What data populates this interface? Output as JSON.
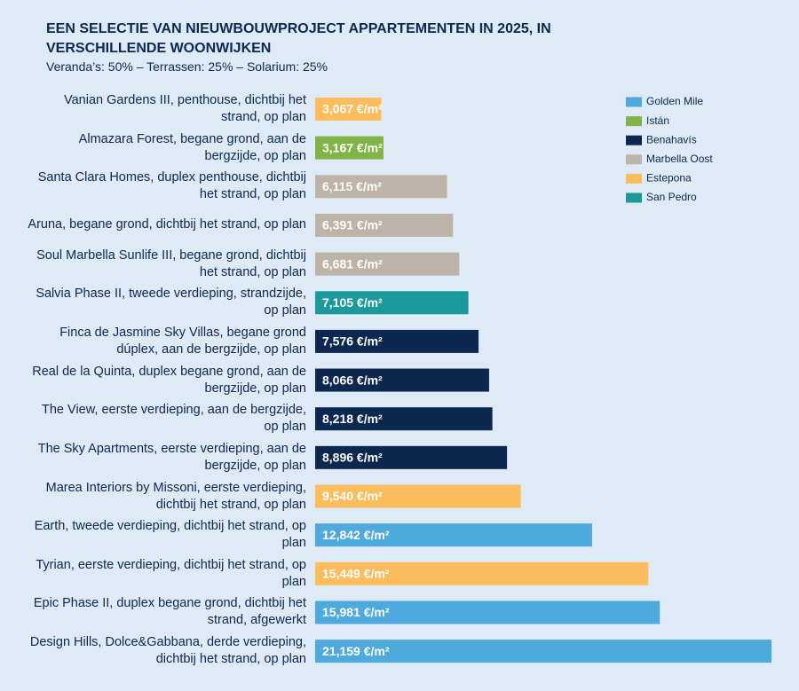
{
  "chart_data": {
    "type": "bar",
    "orientation": "horizontal",
    "title": "EEN SELECTIE VAN NIEUWBOUWPROJECT APPARTEMENTEN IN 2025, IN VERSCHILLENDE WOONWIJKEN",
    "subtitle": "Veranda’s: 50% – Terrassen: 25% – Solarium: 25%",
    "categories": [
      "Vanian Gardens III, penthouse, dichtbij het strand, op plan",
      "Almazara Forest, begane grond, aan de bergzijde, op plan",
      "Santa Clara Homes, duplex penthouse, dichtbij het strand, op plan",
      "Aruna, begane grond, dichtbij het strand, op plan",
      "Soul Marbella Sunlife III, begane grond, dichtbij het strand, op plan",
      "Salvia Phase II, tweede verdieping, strandzijde, op plan",
      "Finca de Jasmine Sky Villas, begane grond dúplex, aan de bergzijde, op plan",
      "Real de la Quinta, duplex begane grond, aan de bergzijde, op plan",
      "The View, eerste verdieping, aan de bergzijde, op plan",
      "The Sky Apartments, eerste verdieping, aan de bergzijde, op plan",
      "Marea Interiors by Missoni, eerste verdieping, dichtbij het strand, op plan",
      "Earth, tweede verdieping, dichtbij het strand, op plan",
      "Tyrian, eerste verdieping, dichtbij het strand, op plan",
      "Epic Phase II, duplex begane grond, dichtbij het strand, afgewerkt",
      "Design Hills, Dolce&Gabbana, derde verdieping, dichtbij het strand, op plan"
    ],
    "series": [
      {
        "name": "Golden Mile",
        "color": "#4ea9dc",
        "values": [
          null,
          null,
          null,
          null,
          null,
          null,
          null,
          null,
          null,
          null,
          null,
          12842,
          null,
          15981,
          21159
        ],
        "value_labels": [
          null,
          null,
          null,
          null,
          null,
          null,
          null,
          null,
          null,
          null,
          null,
          "12,842 €/m²",
          null,
          "15,981 €/m²",
          "21,159 €/m²"
        ]
      },
      {
        "name": "Istán",
        "color": "#80b446",
        "values": [
          null,
          3167,
          null,
          null,
          null,
          null,
          null,
          null,
          null,
          null,
          null,
          null,
          null,
          null,
          null
        ],
        "value_labels": [
          null,
          "3,167 €/m²",
          null,
          null,
          null,
          null,
          null,
          null,
          null,
          null,
          null,
          null,
          null,
          null,
          null
        ]
      },
      {
        "name": "Benahavís",
        "color": "#0c2850",
        "values": [
          null,
          null,
          null,
          null,
          null,
          null,
          7576,
          8066,
          8218,
          8896,
          null,
          null,
          null,
          null,
          null
        ],
        "value_labels": [
          null,
          null,
          null,
          null,
          null,
          null,
          "7,576 €/m²",
          "8,066 €/m²",
          "8,218 €/m²",
          "8,896 €/m²",
          null,
          null,
          null,
          null,
          null
        ]
      },
      {
        "name": "Marbella Oost",
        "color": "#bdb3a6",
        "values": [
          null,
          null,
          6115,
          6391,
          6681,
          null,
          null,
          null,
          null,
          null,
          null,
          null,
          null,
          null,
          null
        ],
        "value_labels": [
          null,
          null,
          "6,115 €/m²",
          "6,391 €/m²",
          "6,681 €/m²",
          null,
          null,
          null,
          null,
          null,
          null,
          null,
          null,
          null,
          null
        ]
      },
      {
        "name": "Estepona",
        "color": "#fdbd5c",
        "values": [
          3067,
          null,
          null,
          null,
          null,
          null,
          null,
          null,
          null,
          null,
          9540,
          null,
          15449,
          null,
          null
        ],
        "value_labels": [
          "3,067 €/m²",
          null,
          null,
          null,
          null,
          null,
          null,
          null,
          null,
          null,
          "9,540 €/m²",
          null,
          "15,449 €/m²",
          null,
          null
        ]
      },
      {
        "name": "San Pedro",
        "color": "#1a9a9c",
        "values": [
          null,
          null,
          null,
          null,
          null,
          7105,
          null,
          null,
          null,
          null,
          null,
          null,
          null,
          null,
          null
        ],
        "value_labels": [
          null,
          null,
          null,
          null,
          null,
          "7,105 €/m²",
          null,
          null,
          null,
          null,
          null,
          null,
          null,
          null,
          null
        ]
      }
    ],
    "legend": "top-right"
  }
}
